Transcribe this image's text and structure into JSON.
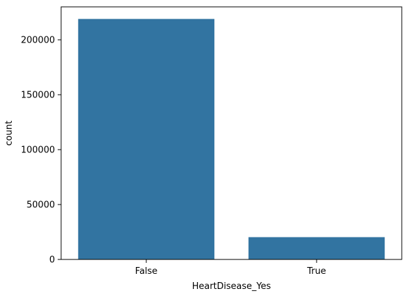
{
  "chart_data": {
    "type": "bar",
    "categories": [
      "False",
      "True"
    ],
    "values": [
      219000,
      20300
    ],
    "xlabel": "HeartDisease_Yes",
    "ylabel": "count",
    "ylim": [
      0,
      230000
    ],
    "yticks": [
      0,
      50000,
      100000,
      150000,
      200000
    ],
    "ytick_labels": [
      "0",
      "50000",
      "100000",
      "150000",
      "200000"
    ],
    "grid": false,
    "bar_color": "#3274a1"
  }
}
